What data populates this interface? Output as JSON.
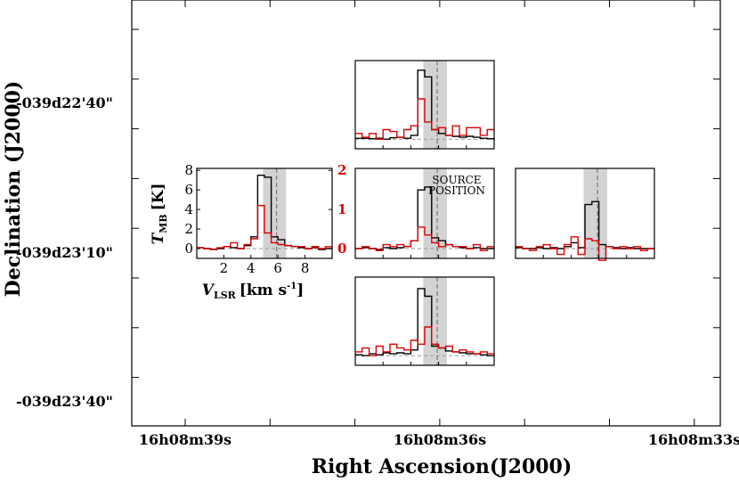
{
  "chart_data": {
    "type": "spectral-map",
    "xlabel": "Right Ascension(J2000)",
    "ylabel": "Declination (J2000)",
    "x_ticks": [
      "16h08m39s",
      "16h08m36s",
      "16h08m33s"
    ],
    "y_ticks": [
      "-039d22'40\"",
      "-039d23'10\"",
      "-039d23'40\""
    ],
    "inset": {
      "xlabel": "V",
      "xlabel_sub": "LSR",
      "xlabel_unit": "[km s",
      "xlabel_sup": "-1",
      "xlabel_close": "]",
      "ylabel": "T",
      "ylabel_sub": "MB",
      "ylabel_unit": "[K]",
      "xlim": [
        0,
        10
      ],
      "ylim_left": [
        -1,
        8.2
      ],
      "ylim_right": [
        -0.25,
        2.05
      ],
      "x_ticks": [
        2,
        4,
        6,
        8
      ],
      "y_ticks_left": [
        0,
        2,
        4,
        6,
        8
      ],
      "y_ticks_right": [
        0,
        1,
        2
      ],
      "shade_band": [
        4.9,
        6.6
      ],
      "dashed_velocity": 5.9,
      "x_tick_labels": [
        "2",
        "4",
        "6",
        "8"
      ],
      "y_tick_labels_left": [
        "0",
        "2",
        "4",
        "6",
        "8"
      ],
      "y_tick_labels_right": [
        "0",
        "1",
        "2"
      ]
    },
    "source_label": [
      "SOURCE",
      "POSITION"
    ],
    "channel_edges": [
      0.0,
      0.5,
      1.0,
      1.5,
      2.0,
      2.5,
      3.0,
      3.5,
      4.0,
      4.5,
      5.0,
      5.5,
      6.0,
      6.5,
      7.0,
      7.5,
      8.0,
      8.5,
      9.0,
      9.5,
      10.0
    ],
    "series": [
      {
        "name": "west",
        "color": "#000000",
        "values": [
          0.1,
          0.0,
          -0.1,
          0.0,
          0.2,
          0.1,
          0.0,
          0.3,
          1.2,
          7.5,
          7.3,
          1.2,
          0.9,
          0.3,
          0.2,
          0.1,
          0.0,
          0.1,
          -0.1,
          0.0
        ]
      },
      {
        "name": "west",
        "color": "#e00000",
        "values": [
          0.02,
          0.0,
          -0.02,
          0.02,
          0.05,
          0.15,
          0.0,
          0.1,
          0.25,
          1.1,
          0.4,
          0.15,
          0.1,
          0.08,
          0.05,
          0.05,
          0.0,
          0.05,
          0.0,
          0.05
        ]
      },
      {
        "name": "north",
        "color": "#000000",
        "values": [
          0.1,
          0.1,
          0.05,
          0.1,
          0.0,
          0.15,
          0.2,
          0.1,
          0.4,
          7.2,
          6.5,
          1.0,
          0.6,
          0.4,
          0.3,
          0.2,
          0.3,
          0.2,
          0.1,
          0.05
        ]
      },
      {
        "name": "north",
        "color": "#e00000",
        "values": [
          0.15,
          0.05,
          0.15,
          0.0,
          0.25,
          0.2,
          0.05,
          0.25,
          0.35,
          1.05,
          0.45,
          0.25,
          0.3,
          0.1,
          0.35,
          0.1,
          0.3,
          0.3,
          0.1,
          0.25
        ]
      },
      {
        "name": "center",
        "color": "#000000",
        "values": [
          0.0,
          0.1,
          0.0,
          -0.1,
          0.1,
          0.0,
          0.1,
          0.2,
          0.8,
          6.0,
          6.3,
          1.1,
          0.8,
          0.4,
          0.2,
          0.1,
          0.0,
          0.1,
          0.0,
          0.0
        ]
      },
      {
        "name": "center",
        "color": "#e00000",
        "values": [
          0.0,
          0.05,
          0.0,
          -0.05,
          0.1,
          0.05,
          0.1,
          0.05,
          0.2,
          0.55,
          0.35,
          0.15,
          0.05,
          0.1,
          0.05,
          0.05,
          0.0,
          0.1,
          -0.05,
          0.05
        ]
      },
      {
        "name": "east",
        "color": "#000000",
        "values": [
          0.1,
          0.0,
          0.0,
          0.1,
          0.0,
          0.1,
          0.0,
          0.2,
          0.6,
          0.1,
          4.5,
          4.8,
          0.4,
          0.2,
          0.1,
          0.0,
          0.1,
          0.0,
          0.0,
          0.0
        ]
      },
      {
        "name": "east",
        "color": "#e00000",
        "values": [
          0.05,
          0.0,
          -0.05,
          0.05,
          0.1,
          0.0,
          -0.15,
          0.1,
          0.3,
          -0.15,
          0.25,
          0.2,
          -0.3,
          0.05,
          0.0,
          0.05,
          0.0,
          0.05,
          -0.05,
          0.0
        ]
      },
      {
        "name": "south",
        "color": "#000000",
        "values": [
          0.1,
          0.0,
          0.2,
          0.1,
          0.3,
          0.2,
          0.3,
          0.2,
          0.6,
          7.0,
          6.2,
          1.0,
          0.8,
          0.5,
          0.4,
          0.3,
          0.2,
          0.2,
          0.1,
          0.0
        ]
      },
      {
        "name": "south",
        "color": "#e00000",
        "values": [
          0.1,
          0.2,
          0.0,
          0.25,
          0.1,
          0.3,
          0.2,
          0.15,
          0.4,
          0.3,
          0.75,
          0.3,
          0.2,
          0.25,
          0.1,
          0.15,
          0.1,
          0.05,
          0.1,
          0.05
        ]
      }
    ]
  }
}
